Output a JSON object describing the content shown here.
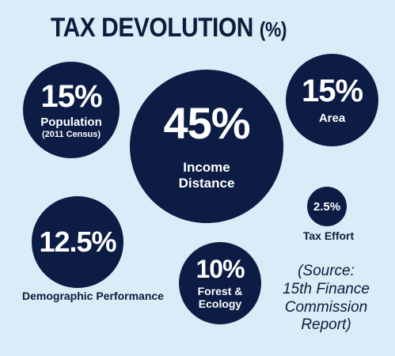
{
  "header": {
    "title": "TAX DEVOLUTION",
    "unit": "(%)"
  },
  "chart_data": {
    "type": "bubble",
    "title": "TAX DEVOLUTION (%)",
    "items": [
      {
        "label": "Income Distance",
        "value": 45,
        "display": "45%"
      },
      {
        "label": "Population",
        "sublabel": "(2011 Census)",
        "value": 15,
        "display": "15%"
      },
      {
        "label": "Area",
        "value": 15,
        "display": "15%"
      },
      {
        "label": "Demographic Performance",
        "value": 12.5,
        "display": "12.5%"
      },
      {
        "label": "Forest & Ecology",
        "value": 10,
        "display": "10%"
      },
      {
        "label": "Tax Effort",
        "value": 2.5,
        "display": "2.5%"
      }
    ]
  },
  "source": {
    "lines": [
      "(Source:",
      "15th Finance",
      "Commission",
      "Report)"
    ]
  },
  "colors": {
    "bubble": "#0c1c45",
    "background": "#d9ecf7",
    "text_light": "#ffffff",
    "text_dark": "#0f1a3d"
  }
}
